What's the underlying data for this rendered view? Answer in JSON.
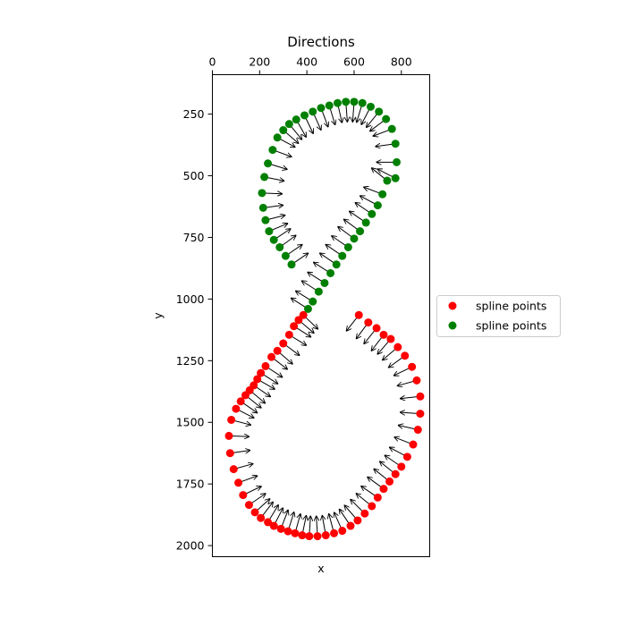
{
  "chart_data": {
    "type": "scatter",
    "title": "Directions",
    "xlabel": "x",
    "ylabel": "y",
    "x_axis_position": "top",
    "y_axis_inverted": true,
    "xlim": [
      0,
      920
    ],
    "ylim": [
      2045,
      90
    ],
    "xticks": [
      0,
      200,
      400,
      600,
      800
    ],
    "yticks": [
      250,
      500,
      750,
      1000,
      1250,
      1500,
      1750,
      2000
    ],
    "grid": false,
    "legend": {
      "placement": "outside-right",
      "entries": [
        "spline points",
        "spline points"
      ]
    },
    "arrow_color": "#000000",
    "series": [
      {
        "name": "spline points",
        "color": "#ff0000",
        "points": [
          [
            620,
            1065
          ],
          [
            660,
            1095
          ],
          [
            695,
            1118
          ],
          [
            725,
            1145
          ],
          [
            755,
            1162
          ],
          [
            785,
            1195
          ],
          [
            815,
            1230
          ],
          [
            845,
            1275
          ],
          [
            865,
            1330
          ],
          [
            880,
            1395
          ],
          [
            880,
            1465
          ],
          [
            870,
            1530
          ],
          [
            850,
            1590
          ],
          [
            825,
            1640
          ],
          [
            800,
            1680
          ],
          [
            775,
            1710
          ],
          [
            750,
            1740
          ],
          [
            725,
            1770
          ],
          [
            700,
            1805
          ],
          [
            675,
            1840
          ],
          [
            645,
            1870
          ],
          [
            615,
            1898
          ],
          [
            585,
            1920
          ],
          [
            550,
            1940
          ],
          [
            515,
            1950
          ],
          [
            480,
            1958
          ],
          [
            445,
            1962
          ],
          [
            410,
            1962
          ],
          [
            380,
            1958
          ],
          [
            350,
            1950
          ],
          [
            320,
            1942
          ],
          [
            290,
            1932
          ],
          [
            260,
            1920
          ],
          [
            235,
            1905
          ],
          [
            205,
            1888
          ],
          [
            180,
            1865
          ],
          [
            155,
            1835
          ],
          [
            130,
            1795
          ],
          [
            110,
            1745
          ],
          [
            90,
            1690
          ],
          [
            75,
            1625
          ],
          [
            70,
            1555
          ],
          [
            80,
            1490
          ],
          [
            100,
            1445
          ],
          [
            120,
            1415
          ],
          [
            140,
            1390
          ],
          [
            158,
            1370
          ],
          [
            175,
            1350
          ],
          [
            190,
            1325
          ],
          [
            205,
            1300
          ],
          [
            225,
            1272
          ],
          [
            250,
            1235
          ],
          [
            275,
            1210
          ],
          [
            300,
            1180
          ],
          [
            325,
            1145
          ],
          [
            345,
            1110
          ],
          [
            365,
            1085
          ],
          [
            385,
            1065
          ]
        ]
      },
      {
        "name": "spline points",
        "color": "#008000",
        "points": [
          [
            405,
            1040
          ],
          [
            425,
            1010
          ],
          [
            450,
            970
          ],
          [
            475,
            935
          ],
          [
            500,
            895
          ],
          [
            525,
            860
          ],
          [
            550,
            825
          ],
          [
            575,
            790
          ],
          [
            600,
            755
          ],
          [
            625,
            725
          ],
          [
            650,
            690
          ],
          [
            675,
            655
          ],
          [
            700,
            620
          ],
          [
            720,
            575
          ],
          [
            740,
            520
          ],
          [
            775,
            510
          ],
          [
            780,
            445
          ],
          [
            775,
            370
          ],
          [
            760,
            310
          ],
          [
            735,
            270
          ],
          [
            705,
            240
          ],
          [
            670,
            220
          ],
          [
            635,
            205
          ],
          [
            600,
            200
          ],
          [
            565,
            200
          ],
          [
            530,
            205
          ],
          [
            495,
            215
          ],
          [
            460,
            225
          ],
          [
            425,
            240
          ],
          [
            390,
            255
          ],
          [
            355,
            272
          ],
          [
            325,
            290
          ],
          [
            300,
            315
          ],
          [
            275,
            345
          ],
          [
            255,
            395
          ],
          [
            235,
            450
          ],
          [
            220,
            505
          ],
          [
            210,
            570
          ],
          [
            215,
            630
          ],
          [
            225,
            680
          ],
          [
            240,
            725
          ],
          [
            260,
            760
          ],
          [
            285,
            790
          ],
          [
            310,
            825
          ],
          [
            335,
            860
          ]
        ]
      }
    ]
  }
}
